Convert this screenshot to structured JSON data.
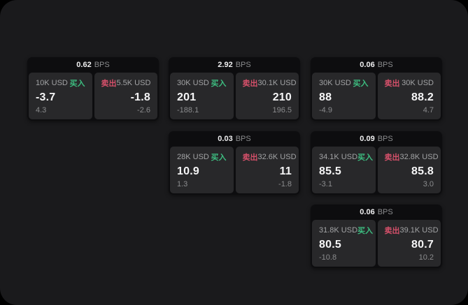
{
  "labels": {
    "bps": "BPS",
    "buy": "买入",
    "sell": "卖出"
  },
  "colors": {
    "buy_accent": "#3dbd80",
    "sell_accent": "#d5506a",
    "app_background": "#1a1a1c",
    "card_background": "#0d0d0f",
    "panel_background": "#28282a"
  },
  "cards": [
    {
      "bps": "0.62",
      "buy": {
        "amount": "10K USD",
        "value": "-3.7",
        "delta": "4.3"
      },
      "sell": {
        "amount": "5.5K USD",
        "value": "-1.8",
        "delta": "-2.6"
      }
    },
    {
      "bps": "2.92",
      "buy": {
        "amount": "30K USD",
        "value": "201",
        "delta": "-188.1"
      },
      "sell": {
        "amount": "30.1K USD",
        "value": "210",
        "delta": "196.5"
      }
    },
    {
      "bps": "0.06",
      "buy": {
        "amount": "30K USD",
        "value": "88",
        "delta": "-4.9"
      },
      "sell": {
        "amount": "30K USD",
        "value": "88.2",
        "delta": "4.7"
      }
    },
    {
      "bps": "0.03",
      "buy": {
        "amount": "28K USD",
        "value": "10.9",
        "delta": "1.3"
      },
      "sell": {
        "amount": "32.6K USD",
        "value": "11",
        "delta": "-1.8"
      }
    },
    {
      "bps": "0.09",
      "buy": {
        "amount": "34.1K USD",
        "value": "85.5",
        "delta": "-3.1"
      },
      "sell": {
        "amount": "32.8K USD",
        "value": "85.8",
        "delta": "3.0"
      }
    },
    {
      "bps": "0.06",
      "buy": {
        "amount": "31.8K USD",
        "value": "80.5",
        "delta": "-10.8"
      },
      "sell": {
        "amount": "39.1K USD",
        "value": "80.7",
        "delta": "10.2"
      }
    }
  ]
}
